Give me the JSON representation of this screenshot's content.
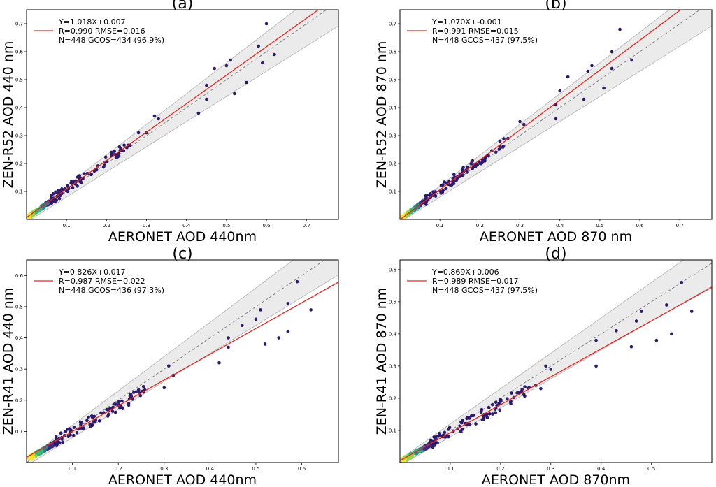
{
  "chart_data": [
    {
      "type": "scatter",
      "panel_label": "(a)",
      "xlabel": "AERONET AOD 440nm",
      "ylabel": "ZEN-R52 AOD 440 nm",
      "xlim": [
        0,
        0.78
      ],
      "ylim": [
        0,
        0.75
      ],
      "xticks": [
        0.1,
        0.2,
        0.3,
        0.4,
        0.5,
        0.6,
        0.7
      ],
      "yticks": [
        0.1,
        0.2,
        0.3,
        0.4,
        0.5,
        0.6,
        0.7
      ],
      "fit": {
        "slope": 1.018,
        "intercept": 0.007
      },
      "band": {
        "abs": 0.01,
        "rel": 0.1
      },
      "legend": [
        "Y=1.018X+0.007",
        "R=0.990  RMSE=0.016",
        "N=448 GCOS=434 (96.9%)"
      ],
      "outliers": [
        [
          0.6,
          0.7
        ],
        [
          0.58,
          0.62
        ],
        [
          0.59,
          0.56
        ],
        [
          0.62,
          0.59
        ],
        [
          0.51,
          0.57
        ],
        [
          0.5,
          0.55
        ],
        [
          0.52,
          0.45
        ],
        [
          0.55,
          0.49
        ],
        [
          0.45,
          0.48
        ],
        [
          0.47,
          0.54
        ],
        [
          0.45,
          0.43
        ],
        [
          0.43,
          0.38
        ],
        [
          0.32,
          0.37
        ],
        [
          0.3,
          0.31
        ],
        [
          0.33,
          0.36
        ],
        [
          0.28,
          0.31
        ]
      ]
    },
    {
      "type": "scatter",
      "panel_label": "(b)",
      "xlabel": "AERONET AOD 870 nm",
      "ylabel": "ZEN-R52 AOD 870 nm",
      "xlim": [
        0,
        0.78
      ],
      "ylim": [
        0,
        0.75
      ],
      "xticks": [
        0.1,
        0.2,
        0.3,
        0.4,
        0.5,
        0.6,
        0.7
      ],
      "yticks": [
        0.1,
        0.2,
        0.3,
        0.4,
        0.5,
        0.6,
        0.7
      ],
      "fit": {
        "slope": 1.07,
        "intercept": -0.001
      },
      "band": {
        "abs": 0.01,
        "rel": 0.1
      },
      "legend": [
        "Y=1.070X+-0.001",
        "R=0.991  RMSE=0.015",
        "N=448 GCOS=437 (97.5%)"
      ],
      "outliers": [
        [
          0.55,
          0.68
        ],
        [
          0.53,
          0.6
        ],
        [
          0.58,
          0.57
        ],
        [
          0.53,
          0.54
        ],
        [
          0.48,
          0.55
        ],
        [
          0.47,
          0.53
        ],
        [
          0.51,
          0.47
        ],
        [
          0.46,
          0.43
        ],
        [
          0.4,
          0.46
        ],
        [
          0.42,
          0.51
        ],
        [
          0.39,
          0.36
        ],
        [
          0.39,
          0.41
        ],
        [
          0.3,
          0.35
        ],
        [
          0.31,
          0.34
        ],
        [
          0.27,
          0.29
        ],
        [
          0.25,
          0.28
        ]
      ]
    },
    {
      "type": "scatter",
      "panel_label": "(c)",
      "xlabel": "AERONET AOD 440nm",
      "ylabel": "ZEN-R41 AOD 440 nm",
      "xlim": [
        0,
        0.68
      ],
      "ylim": [
        0,
        0.65
      ],
      "xticks": [
        0.1,
        0.2,
        0.3,
        0.4,
        0.5,
        0.6
      ],
      "yticks": [
        0.1,
        0.2,
        0.3,
        0.4,
        0.5,
        0.6
      ],
      "fit": {
        "slope": 0.826,
        "intercept": 0.017
      },
      "band": {
        "abs": 0.01,
        "rel": 0.1
      },
      "legend": [
        "Y=0.826X+0.017",
        "R=0.987  RMSE=0.022",
        "N=448 GCOS=436 (97.3%)"
      ],
      "outliers": [
        [
          0.59,
          0.58
        ],
        [
          0.57,
          0.51
        ],
        [
          0.62,
          0.49
        ],
        [
          0.5,
          0.46
        ],
        [
          0.51,
          0.49
        ],
        [
          0.57,
          0.42
        ],
        [
          0.52,
          0.38
        ],
        [
          0.55,
          0.4
        ],
        [
          0.47,
          0.44
        ],
        [
          0.44,
          0.4
        ],
        [
          0.44,
          0.37
        ],
        [
          0.42,
          0.32
        ],
        [
          0.31,
          0.31
        ],
        [
          0.3,
          0.24
        ],
        [
          0.32,
          0.28
        ]
      ]
    },
    {
      "type": "scatter",
      "panel_label": "(d)",
      "xlabel": "AERONET AOD 870nm",
      "ylabel": "ZEN-R41 AOD 870 nm",
      "xlim": [
        0,
        0.62
      ],
      "ylim": [
        0,
        0.63
      ],
      "xticks": [
        0.1,
        0.2,
        0.3,
        0.4,
        0.5
      ],
      "yticks": [
        0.1,
        0.2,
        0.3,
        0.4,
        0.5,
        0.6
      ],
      "fit": {
        "slope": 0.869,
        "intercept": 0.006
      },
      "band": {
        "abs": 0.01,
        "rel": 0.1
      },
      "legend": [
        "Y=0.869X+0.006",
        "R=0.989  RMSE=0.017",
        "N=448 GCOS=437 (97.5%)"
      ],
      "outliers": [
        [
          0.56,
          0.56
        ],
        [
          0.53,
          0.49
        ],
        [
          0.48,
          0.47
        ],
        [
          0.47,
          0.44
        ],
        [
          0.58,
          0.47
        ],
        [
          0.46,
          0.36
        ],
        [
          0.51,
          0.38
        ],
        [
          0.54,
          0.4
        ],
        [
          0.43,
          0.41
        ],
        [
          0.39,
          0.38
        ],
        [
          0.39,
          0.3
        ],
        [
          0.29,
          0.3
        ],
        [
          0.3,
          0.29
        ],
        [
          0.28,
          0.23
        ],
        [
          0.27,
          0.24
        ]
      ]
    }
  ]
}
